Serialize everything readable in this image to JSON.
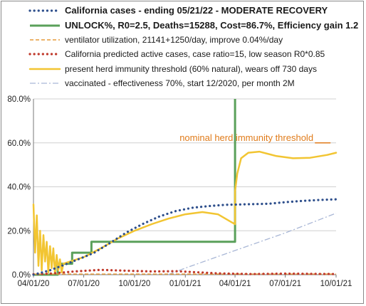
{
  "chart_data": {
    "type": "line",
    "title": "",
    "xlabel": "",
    "ylabel": "",
    "x_tick_labels": [
      "04/01/20",
      "07/01/20",
      "10/01/20",
      "01/01/21",
      "04/01/21",
      "07/01/21",
      "10/01/21"
    ],
    "x_range": [
      "2020-04-01",
      "2021-10-01"
    ],
    "y_tick_labels": [
      "0.0%",
      "20.0%",
      "40.0%",
      "60.0%",
      "80.0%"
    ],
    "ylim": [
      0,
      80
    ],
    "grid": "horizontal",
    "legend_position": "top",
    "annotations": [
      {
        "text": "nominal herd immunity threshold",
        "x": "2021-05-15",
        "y": 60,
        "color": "#e07b1a"
      }
    ],
    "series": [
      {
        "name": "California cases - ending 05/21/22 - MODERATE RECOVERY",
        "style": "dotted",
        "color": "#2e4f8c",
        "points": [
          [
            "2020-04-01",
            0
          ],
          [
            "2020-05-01",
            2
          ],
          [
            "2020-06-01",
            5
          ],
          [
            "2020-07-01",
            8
          ],
          [
            "2020-07-20",
            10
          ],
          [
            "2020-08-15",
            14
          ],
          [
            "2020-09-15",
            19
          ],
          [
            "2020-10-15",
            23
          ],
          [
            "2020-11-15",
            26.5
          ],
          [
            "2020-12-15",
            29
          ],
          [
            "2021-01-15",
            30.5
          ],
          [
            "2021-02-15",
            31.3
          ],
          [
            "2021-03-15",
            31.8
          ],
          [
            "2021-04-15",
            32
          ],
          [
            "2021-06-01",
            32.3
          ],
          [
            "2021-07-01",
            33
          ],
          [
            "2021-08-01",
            33.6
          ],
          [
            "2021-09-01",
            34
          ],
          [
            "2021-10-01",
            34.3
          ]
        ]
      },
      {
        "name": "UNLOCK%, R0=2.5, Deaths=15288, Cost=86.7%, Efficiency gain 1.2",
        "style": "solid-bold",
        "color": "#5aa05a",
        "points": [
          [
            "2020-04-01",
            0
          ],
          [
            "2020-05-15",
            0
          ],
          [
            "2020-05-15",
            5
          ],
          [
            "2020-06-10",
            5
          ],
          [
            "2020-06-10",
            10
          ],
          [
            "2020-07-15",
            10
          ],
          [
            "2020-07-15",
            15
          ],
          [
            "2021-04-01",
            15
          ],
          [
            "2021-04-01",
            80
          ]
        ]
      },
      {
        "name": "ventilator utilization, 21141+1250/day, improve 0.04%/day",
        "style": "dashed",
        "color": "#e69a3a",
        "points": [
          [
            "2020-04-01",
            0.3
          ],
          [
            "2021-10-01",
            0.3
          ]
        ]
      },
      {
        "name": "California predicted active cases, case ratio=15, low season R0*0.85",
        "style": "dotted",
        "color": "#c0392b",
        "points": [
          [
            "2020-04-01",
            0.2
          ],
          [
            "2020-05-01",
            0.5
          ],
          [
            "2020-06-15",
            1.5
          ],
          [
            "2020-08-01",
            2.2
          ],
          [
            "2020-09-15",
            1.8
          ],
          [
            "2020-11-01",
            1.5
          ],
          [
            "2020-12-15",
            1.6
          ],
          [
            "2021-01-15",
            1.2
          ],
          [
            "2021-03-01",
            0.6
          ],
          [
            "2021-05-01",
            0.3
          ],
          [
            "2021-07-01",
            0.5
          ],
          [
            "2021-08-15",
            0.4
          ],
          [
            "2021-10-01",
            0.3
          ]
        ]
      },
      {
        "name": "present herd immunity threshold (60% natural), wears off 730 days",
        "style": "solid",
        "color": "#f2c532",
        "points": [
          [
            "2020-05-25",
            5
          ],
          [
            "2020-07-01",
            8
          ],
          [
            "2020-08-01",
            12
          ],
          [
            "2020-09-01",
            16.5
          ],
          [
            "2020-10-01",
            20
          ],
          [
            "2020-11-01",
            23
          ],
          [
            "2020-12-01",
            25.5
          ],
          [
            "2021-01-01",
            27.5
          ],
          [
            "2021-02-01",
            28.5
          ],
          [
            "2021-03-01",
            27.5
          ],
          [
            "2021-03-25",
            24
          ],
          [
            "2021-04-01",
            23
          ],
          [
            "2021-04-01",
            38
          ],
          [
            "2021-04-05",
            46
          ],
          [
            "2021-04-12",
            53
          ],
          [
            "2021-04-25",
            55.5
          ],
          [
            "2021-05-15",
            56
          ],
          [
            "2021-06-15",
            54
          ],
          [
            "2021-07-15",
            53
          ],
          [
            "2021-08-15",
            53.2
          ],
          [
            "2021-09-15",
            54.5
          ],
          [
            "2021-10-01",
            55.5
          ]
        ]
      },
      {
        "name": "vaccinated - effectiveness 70%, start 12/2020, per month 2M",
        "style": "dashdot",
        "color": "#a9b7d6",
        "points": [
          [
            "2020-12-01",
            0
          ],
          [
            "2021-01-01",
            3
          ],
          [
            "2021-04-01",
            11
          ],
          [
            "2021-07-01",
            19
          ],
          [
            "2021-10-01",
            28
          ]
        ]
      }
    ],
    "early_noise_series_color": "#f2c532"
  }
}
